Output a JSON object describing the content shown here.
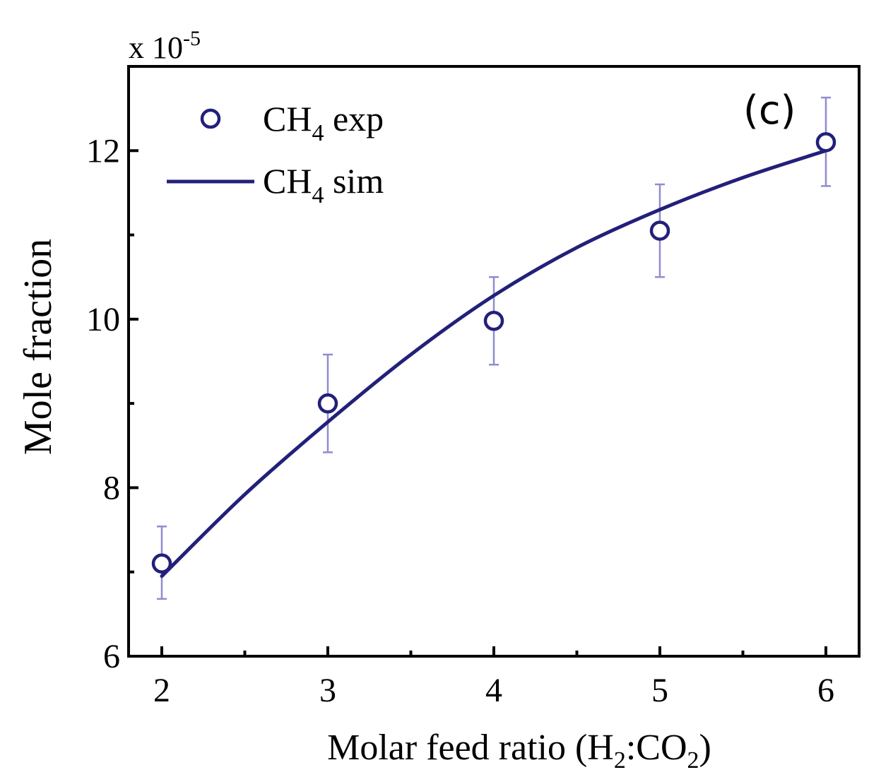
{
  "chart_data": {
    "type": "scatter",
    "panel_label": "(c)",
    "multiplier": "x 10",
    "multiplier_exponent": "-5",
    "xlabel": {
      "prefix": "Molar feed ratio (H",
      "sub1": "2",
      "mid": ":CO",
      "sub2": "2",
      "suffix": ")"
    },
    "ylabel": "Mole fraction",
    "xlim": [
      1.8,
      6.2
    ],
    "ylim": [
      6,
      13
    ],
    "x_ticks": [
      2,
      3,
      4,
      5,
      6
    ],
    "x_minor_ticks": [
      2.5,
      3.5,
      4.5,
      5.5
    ],
    "y_ticks": [
      6,
      8,
      10,
      12
    ],
    "y_minor_ticks": [
      7,
      9,
      11
    ],
    "series": [
      {
        "name": "CH4 exp",
        "legend": {
          "base": "CH",
          "sub": "4",
          "rest": " exp"
        },
        "kind": "markers",
        "x": [
          2,
          3,
          4,
          5,
          6
        ],
        "y": [
          7.1,
          9.0,
          9.98,
          11.05,
          12.1
        ],
        "err_low": [
          6.68,
          8.42,
          9.46,
          10.5,
          11.58
        ],
        "err_high": [
          7.54,
          9.58,
          10.5,
          11.6,
          12.63
        ]
      },
      {
        "name": "CH4 sim",
        "legend": {
          "base": "CH",
          "sub": "4",
          "rest": " sim"
        },
        "kind": "line",
        "x": [
          2,
          2.5,
          3,
          3.5,
          4,
          4.5,
          5,
          5.5,
          6
        ],
        "y": [
          6.95,
          7.92,
          8.78,
          9.58,
          10.28,
          10.85,
          11.3,
          11.68,
          12.0
        ]
      }
    ],
    "colors": {
      "series": "#23207a",
      "error_bar": "#8f8cd0",
      "axis": "#000000"
    }
  }
}
